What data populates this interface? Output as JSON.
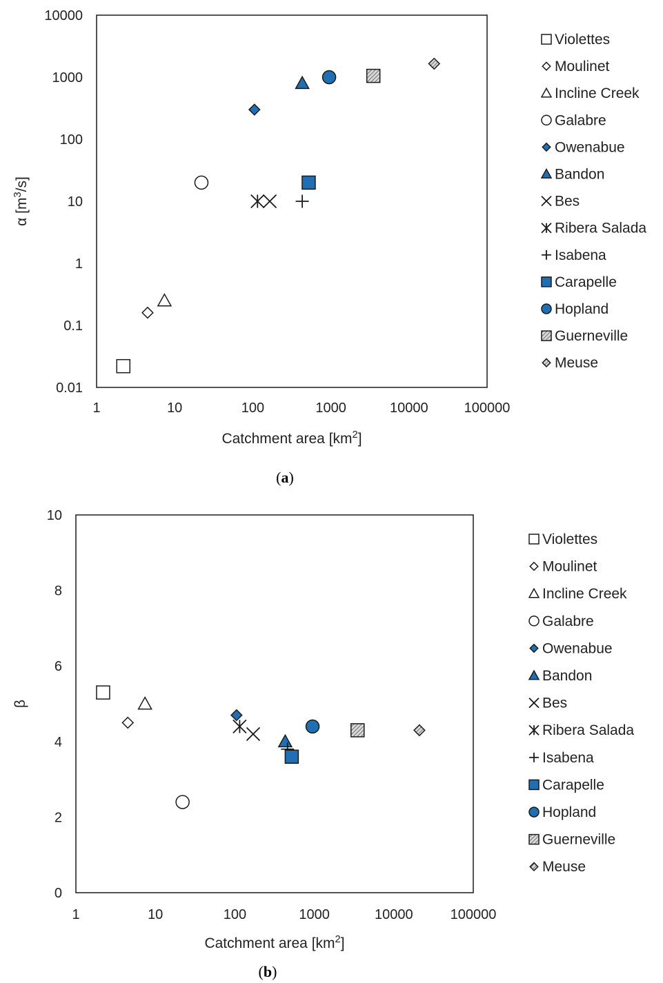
{
  "chart_data": [
    {
      "type": "scatter",
      "panel_label": "(a)",
      "xlabel": "Catchment area [km²]",
      "ylabel": "α [m³/s]",
      "xscale": "log",
      "yscale": "log",
      "xlim": [
        1,
        100000
      ],
      "ylim": [
        0.01,
        10000
      ],
      "xticks": [
        "1",
        "10",
        "100",
        "1000",
        "10000",
        "100000"
      ],
      "yticks": [
        "0.01",
        "0.1",
        "1",
        "10",
        "100",
        "1000",
        "10000"
      ],
      "grid": false,
      "legend_position": "right",
      "series": [
        {
          "name": "Violettes",
          "marker": "square-open",
          "x": 2.2,
          "y": 0.022
        },
        {
          "name": "Moulinet",
          "marker": "diamond-open",
          "x": 4.5,
          "y": 0.16
        },
        {
          "name": "Incline Creek",
          "marker": "triangle-open",
          "x": 7.4,
          "y": 0.25
        },
        {
          "name": "Galabre",
          "marker": "circle-open",
          "x": 22,
          "y": 20
        },
        {
          "name": "Owenabue",
          "marker": "diamond-blue",
          "x": 105,
          "y": 300
        },
        {
          "name": "Bandon",
          "marker": "triangle-blue",
          "x": 430,
          "y": 800
        },
        {
          "name": "Bes",
          "marker": "x",
          "x": 165,
          "y": 10
        },
        {
          "name": "Ribera Salada",
          "marker": "asterisk",
          "x": 115,
          "y": 10
        },
        {
          "name": "Isabena",
          "marker": "plus",
          "x": 430,
          "y": 10
        },
        {
          "name": "Carapelle",
          "marker": "square-blue",
          "x": 520,
          "y": 20
        },
        {
          "name": "Hopland",
          "marker": "circle-blue",
          "x": 950,
          "y": 1000
        },
        {
          "name": "Guerneville",
          "marker": "square-hatched",
          "x": 3500,
          "y": 1050
        },
        {
          "name": "Meuse",
          "marker": "diamond-hatched",
          "x": 21000,
          "y": 1650
        }
      ]
    },
    {
      "type": "scatter",
      "panel_label": "(b)",
      "xlabel": "Catchment area [km²]",
      "ylabel": "β",
      "xscale": "log",
      "yscale": "linear",
      "xlim": [
        1,
        100000
      ],
      "ylim": [
        0,
        10
      ],
      "xticks": [
        "1",
        "10",
        "100",
        "1000",
        "10000",
        "100000"
      ],
      "yticks": [
        "0",
        "2",
        "4",
        "6",
        "8",
        "10"
      ],
      "grid": false,
      "legend_position": "right",
      "series": [
        {
          "name": "Violettes",
          "marker": "square-open",
          "x": 2.2,
          "y": 5.3
        },
        {
          "name": "Moulinet",
          "marker": "diamond-open",
          "x": 4.5,
          "y": 4.5
        },
        {
          "name": "Incline Creek",
          "marker": "triangle-open",
          "x": 7.4,
          "y": 5.0
        },
        {
          "name": "Galabre",
          "marker": "circle-open",
          "x": 22,
          "y": 2.4
        },
        {
          "name": "Owenabue",
          "marker": "diamond-blue",
          "x": 105,
          "y": 4.7
        },
        {
          "name": "Bandon",
          "marker": "triangle-blue",
          "x": 430,
          "y": 4.0
        },
        {
          "name": "Bes",
          "marker": "x",
          "x": 170,
          "y": 4.2
        },
        {
          "name": "Ribera Salada",
          "marker": "asterisk",
          "x": 115,
          "y": 4.4
        },
        {
          "name": "Isabena",
          "marker": "plus",
          "x": 460,
          "y": 3.8
        },
        {
          "name": "Carapelle",
          "marker": "square-blue",
          "x": 520,
          "y": 3.6
        },
        {
          "name": "Hopland",
          "marker": "circle-blue",
          "x": 950,
          "y": 4.4
        },
        {
          "name": "Guerneville",
          "marker": "square-hatched",
          "x": 3500,
          "y": 4.3
        },
        {
          "name": "Meuse",
          "marker": "diamond-hatched",
          "x": 21000,
          "y": 4.3
        }
      ]
    }
  ],
  "colors": {
    "blue_fill": "#1f6fb2",
    "stroke": "#1a1a1a",
    "hatch_fill": "#d9d9d9",
    "hatch_line": "#555555",
    "background": "#ffffff"
  }
}
